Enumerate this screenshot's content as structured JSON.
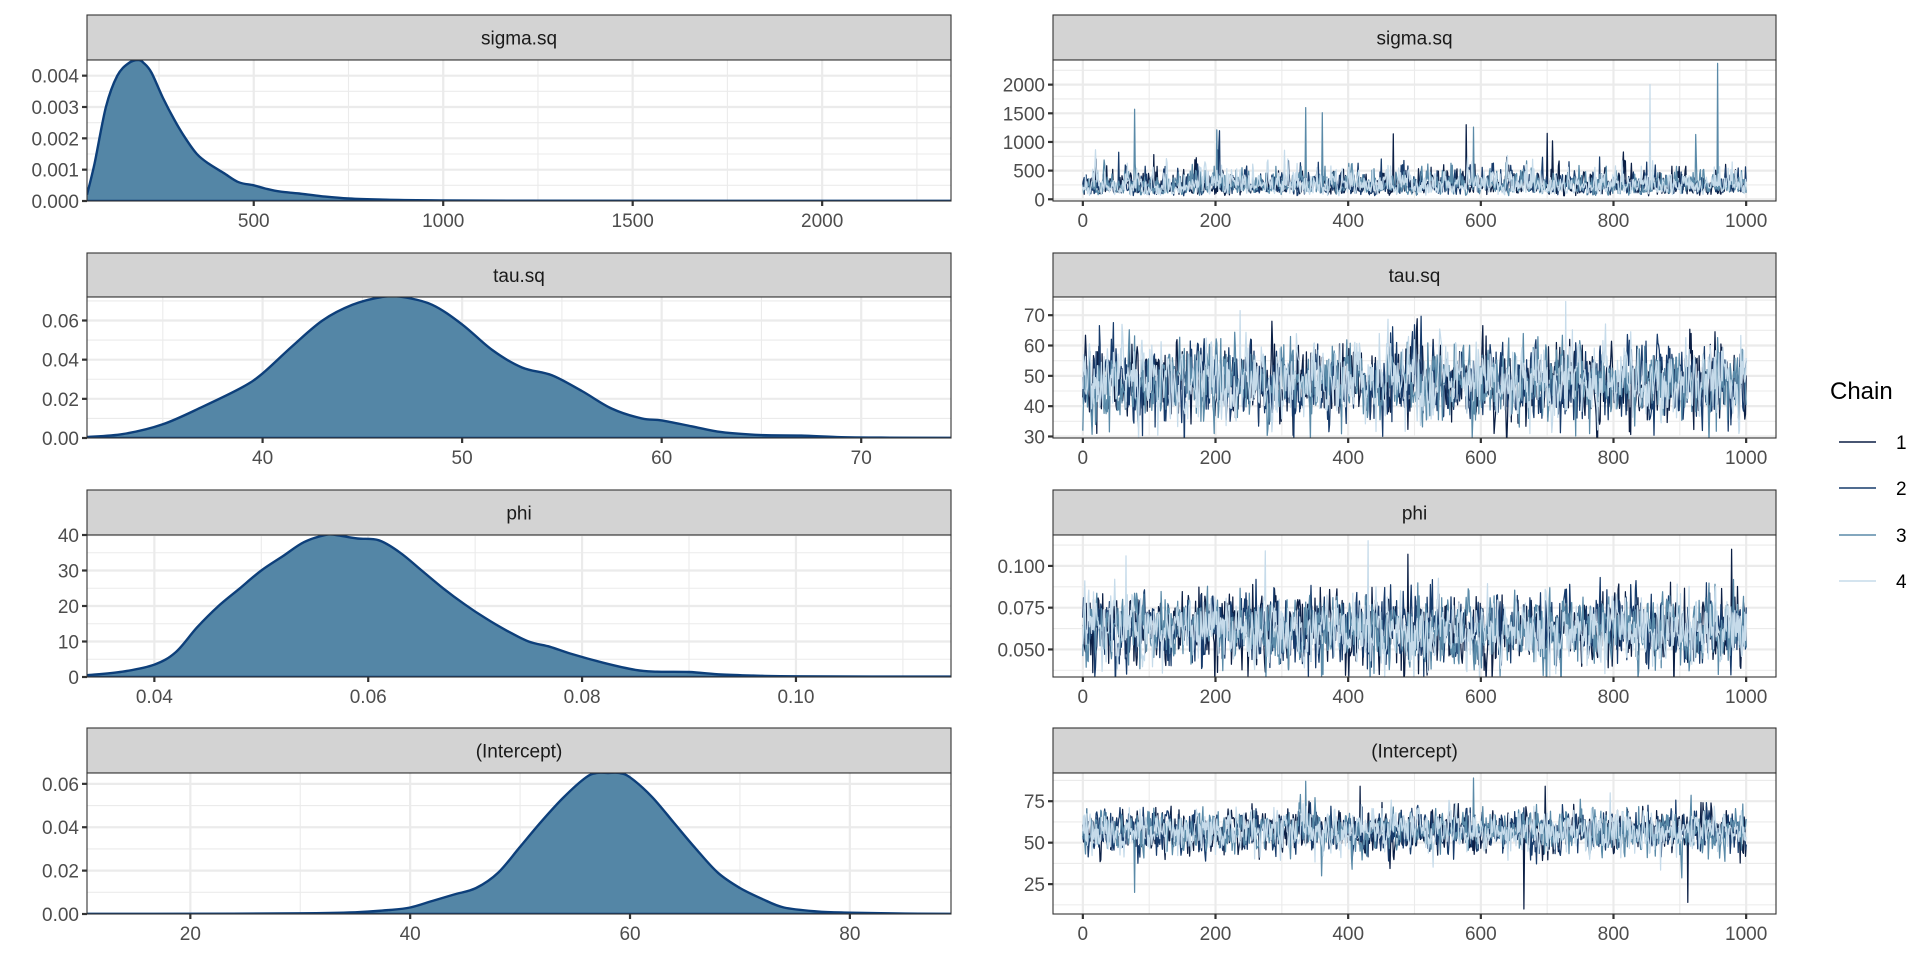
{
  "chart_data": {
    "type": "density+trace",
    "title": "",
    "legend": {
      "title": "Chain",
      "position": "right",
      "entries": [
        {
          "label": "1",
          "color": "#0b1f45"
        },
        {
          "label": "2",
          "color": "#173b6b"
        },
        {
          "label": "3",
          "color": "#5a8aa8"
        },
        {
          "label": "4",
          "color": "#c6dbea"
        }
      ]
    },
    "colors": {
      "density_fill": "#5486a6",
      "density_line": "#0d3f7a",
      "strip_fill": "#d3d3d3",
      "grid": "#ebebeb"
    },
    "density_panels": [
      {
        "title": "sigma.sq",
        "xlim": [
          60,
          2340
        ],
        "ylim": [
          0,
          0.0045
        ],
        "xticks": [
          500,
          1000,
          1500,
          2000
        ],
        "xtick_labels": [
          "500",
          "1000",
          "1500",
          "2000"
        ],
        "yticks": [
          0,
          0.001,
          0.002,
          0.003,
          0.004
        ],
        "ytick_labels": [
          "0.000",
          "0.001",
          "0.002",
          "0.003",
          "0.004"
        ],
        "x": [
          60,
          80,
          110,
          140,
          170,
          195,
          210,
          230,
          260,
          290,
          320,
          350,
          380,
          420,
          460,
          500,
          530,
          570,
          620,
          680,
          750,
          850,
          1000,
          1200,
          1500,
          2000,
          2340
        ],
        "y": [
          0.0002,
          0.0012,
          0.003,
          0.004,
          0.0044,
          0.0045,
          0.0044,
          0.0041,
          0.0033,
          0.0026,
          0.002,
          0.0015,
          0.0012,
          0.0009,
          0.0006,
          0.0005,
          0.0004,
          0.0003,
          0.00024,
          0.00015,
          8e-05,
          4e-05,
          2e-05,
          1e-05,
          5e-06,
          2e-06,
          0.0
        ]
      },
      {
        "title": "tau.sq",
        "xlim": [
          31.2,
          74.5
        ],
        "ylim": [
          0,
          0.072
        ],
        "xticks": [
          40,
          50,
          60,
          70
        ],
        "xtick_labels": [
          "40",
          "50",
          "60",
          "70"
        ],
        "yticks": [
          0,
          0.02,
          0.04,
          0.06
        ],
        "ytick_labels": [
          "0.00",
          "0.02",
          "0.04",
          "0.06"
        ],
        "x": [
          31.2,
          33,
          35,
          37,
          39,
          40,
          41.5,
          43,
          44.5,
          46,
          47,
          48.5,
          50,
          51.5,
          53,
          54.5,
          56,
          57.5,
          59,
          60,
          61.5,
          63,
          65,
          67,
          69,
          71,
          74.5
        ],
        "y": [
          0.0005,
          0.002,
          0.007,
          0.016,
          0.026,
          0.033,
          0.047,
          0.06,
          0.068,
          0.072,
          0.072,
          0.068,
          0.058,
          0.045,
          0.036,
          0.032,
          0.024,
          0.015,
          0.01,
          0.009,
          0.006,
          0.003,
          0.0015,
          0.0012,
          0.0004,
          0.0002,
          0.0
        ]
      },
      {
        "title": "phi",
        "xlim": [
          0.0337,
          0.1145
        ],
        "ylim": [
          0,
          40
        ],
        "xticks": [
          0.04,
          0.06,
          0.08,
          0.1
        ],
        "xtick_labels": [
          "0.04",
          "0.06",
          "0.08",
          "0.10"
        ],
        "yticks": [
          0,
          10,
          20,
          30,
          40
        ],
        "ytick_labels": [
          "0",
          "10",
          "20",
          "30",
          "40"
        ],
        "x": [
          0.0337,
          0.037,
          0.04,
          0.042,
          0.044,
          0.046,
          0.048,
          0.05,
          0.052,
          0.054,
          0.056,
          0.057,
          0.059,
          0.061,
          0.063,
          0.065,
          0.067,
          0.069,
          0.071,
          0.073,
          0.075,
          0.077,
          0.079,
          0.082,
          0.085,
          0.087,
          0.09,
          0.093,
          0.096,
          0.1,
          0.1145
        ],
        "y": [
          0.5,
          1.5,
          3.5,
          7,
          14,
          20,
          25,
          30,
          34,
          38,
          40,
          40,
          39,
          38.5,
          35,
          30,
          25,
          20.5,
          16.5,
          13,
          10,
          8.5,
          6.5,
          4,
          2,
          1.5,
          1.4,
          0.7,
          0.4,
          0.2,
          0.1
        ]
      },
      {
        "title": "(Intercept)",
        "xlim": [
          10.6,
          89.2
        ],
        "ylim": [
          0,
          0.065
        ],
        "xticks": [
          20,
          40,
          60,
          80
        ],
        "xtick_labels": [
          "20",
          "40",
          "60",
          "80"
        ],
        "yticks": [
          0,
          0.02,
          0.04,
          0.06
        ],
        "ytick_labels": [
          "0.00",
          "0.02",
          "0.04",
          "0.06"
        ],
        "x": [
          10.6,
          20,
          30,
          35,
          38,
          40,
          42,
          44,
          46,
          48,
          50,
          52,
          54,
          56,
          57,
          58,
          59,
          60,
          62,
          64,
          66,
          68,
          70,
          72,
          74,
          77,
          80,
          85,
          89.2
        ],
        "y": [
          0.0,
          0.0001,
          0.0003,
          0.0008,
          0.0018,
          0.003,
          0.006,
          0.009,
          0.012,
          0.019,
          0.031,
          0.043,
          0.054,
          0.063,
          0.065,
          0.065,
          0.065,
          0.063,
          0.054,
          0.042,
          0.03,
          0.019,
          0.012,
          0.007,
          0.003,
          0.0012,
          0.0006,
          0.0002,
          0.0
        ]
      }
    ],
    "trace_panels": [
      {
        "title": "sigma.sq",
        "xlim": [
          -45,
          1045
        ],
        "ylim": [
          -30,
          2430
        ],
        "xticks": [
          0,
          200,
          400,
          600,
          800,
          1000
        ],
        "xtick_labels": [
          "0",
          "200",
          "400",
          "600",
          "800",
          "1000"
        ],
        "yticks": [
          0,
          500,
          1000,
          1500,
          2000
        ],
        "ytick_labels": [
          "0",
          "500",
          "1000",
          "1500",
          "2000"
        ],
        "iterations": 1000,
        "chain_mean": 260,
        "chain_sd": 120,
        "skewed": true,
        "spikes": [
          {
            "chain": 3,
            "iter": 78,
            "value": 1570
          },
          {
            "chain": 3,
            "iter": 336,
            "value": 1600
          },
          {
            "chain": 3,
            "iter": 361,
            "value": 1510
          },
          {
            "chain": 3,
            "iter": 202,
            "value": 1210
          },
          {
            "chain": 1,
            "iter": 578,
            "value": 1300
          },
          {
            "chain": 3,
            "iter": 589,
            "value": 1260
          },
          {
            "chain": 1,
            "iter": 700,
            "value": 1150
          },
          {
            "chain": 4,
            "iter": 855,
            "value": 2000
          },
          {
            "chain": 3,
            "iter": 957,
            "value": 2370
          },
          {
            "chain": 1,
            "iter": 468,
            "value": 1140
          }
        ]
      },
      {
        "title": "tau.sq",
        "xlim": [
          -45,
          1045
        ],
        "ylim": [
          29.5,
          76
        ],
        "xticks": [
          0,
          200,
          400,
          600,
          800,
          1000
        ],
        "xtick_labels": [
          "0",
          "200",
          "400",
          "600",
          "800",
          "1000"
        ],
        "yticks": [
          30,
          40,
          50,
          60,
          70
        ],
        "ytick_labels": [
          "30",
          "40",
          "50",
          "60",
          "70"
        ],
        "iterations": 1000,
        "chain_mean": 48,
        "chain_sd": 6.3,
        "skewed": false,
        "spikes": [
          {
            "chain": 4,
            "iter": 728,
            "value": 74.5
          },
          {
            "chain": 4,
            "iter": 237,
            "value": 71.5
          },
          {
            "chain": 3,
            "iter": 40,
            "value": 31.5
          },
          {
            "chain": 1,
            "iter": 620,
            "value": 31
          }
        ]
      },
      {
        "title": "phi",
        "xlim": [
          -45,
          1045
        ],
        "ylim": [
          0.0335,
          0.1185
        ],
        "xticks": [
          0,
          200,
          400,
          600,
          800,
          1000
        ],
        "xtick_labels": [
          "0",
          "200",
          "400",
          "600",
          "800",
          "1000"
        ],
        "yticks": [
          0.05,
          0.075,
          0.1
        ],
        "ytick_labels": [
          "0.050",
          "0.075",
          "0.100"
        ],
        "iterations": 1000,
        "chain_mean": 0.062,
        "chain_sd": 0.0105,
        "skewed": false,
        "spikes": [
          {
            "chain": 4,
            "iter": 430,
            "value": 0.115
          },
          {
            "chain": 1,
            "iter": 978,
            "value": 0.11
          },
          {
            "chain": 4,
            "iter": 65,
            "value": 0.106
          },
          {
            "chain": 4,
            "iter": 275,
            "value": 0.109
          },
          {
            "chain": 1,
            "iter": 490,
            "value": 0.107
          },
          {
            "chain": 3,
            "iter": 362,
            "value": 0.035
          },
          {
            "chain": 3,
            "iter": 958,
            "value": 0.035
          }
        ]
      },
      {
        "title": "(Intercept)",
        "xlim": [
          -45,
          1045
        ],
        "ylim": [
          7,
          92
        ],
        "xticks": [
          0,
          200,
          400,
          600,
          800,
          1000
        ],
        "xtick_labels": [
          "0",
          "200",
          "400",
          "600",
          "800",
          "1000"
        ],
        "yticks": [
          25,
          50,
          75
        ],
        "ytick_labels": [
          "25",
          "50",
          "75"
        ],
        "iterations": 1000,
        "chain_mean": 57,
        "chain_sd": 6.5,
        "skewed": false,
        "spikes": [
          {
            "chain": 3,
            "iter": 78,
            "value": 20
          },
          {
            "chain": 3,
            "iter": 336,
            "value": 87
          },
          {
            "chain": 3,
            "iter": 589,
            "value": 89
          },
          {
            "chain": 1,
            "iter": 665,
            "value": 10
          },
          {
            "chain": 1,
            "iter": 912,
            "value": 14
          },
          {
            "chain": 1,
            "iter": 697,
            "value": 84
          },
          {
            "chain": 1,
            "iter": 418,
            "value": 84
          },
          {
            "chain": 3,
            "iter": 360,
            "value": 30
          }
        ]
      }
    ]
  }
}
